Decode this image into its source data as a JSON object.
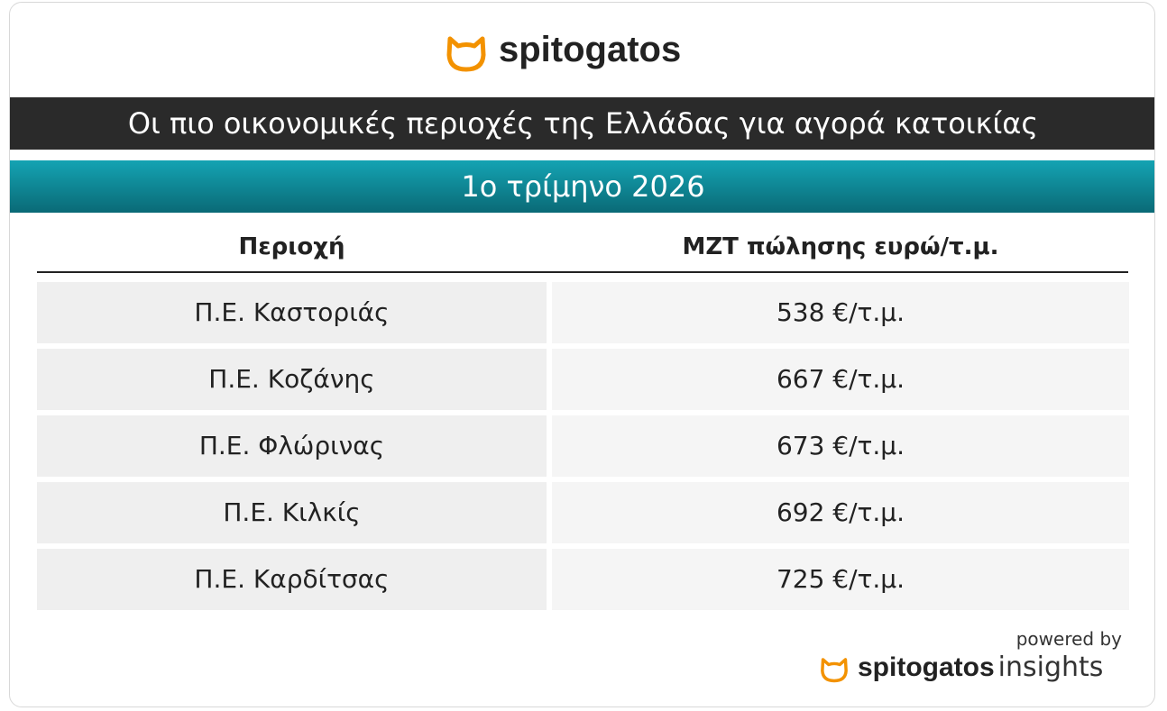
{
  "header": {
    "logo": "spitogatos",
    "title": "Οι πιο οικονομικές περιοχές της Ελλάδας για αγορά κατοικίας",
    "subtitle": "1ο τρίμηνο 2026"
  },
  "table": {
    "columns": [
      "Περιοχή",
      "ΜΖΤ πώλησης ευρώ/τ.μ."
    ],
    "rows": [
      [
        "Π.Ε. Καστοριάς",
        "538 €/τ.μ."
      ],
      [
        "Π.Ε. Κοζάνης",
        "667 €/τ.μ."
      ],
      [
        "Π.Ε. Φλώρινας",
        "673 €/τ.μ."
      ],
      [
        "Π.Ε. Κιλκίς",
        "692 €/τ.μ."
      ],
      [
        "Π.Ε. Καρδίτσας",
        "725 €/τ.μ."
      ]
    ]
  },
  "footer": {
    "powered_by": "powered by",
    "logo": "spitogatos",
    "suffix": "insights"
  }
}
